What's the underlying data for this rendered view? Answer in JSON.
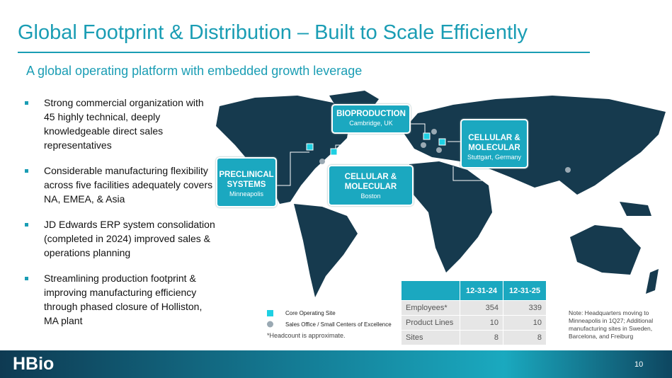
{
  "header": {
    "title": "Global Footprint & Distribution – Built to Scale Efficiently",
    "subtitle": "A global operating platform with embedded growth leverage"
  },
  "bullets": [
    "Strong commercial organization with 45 highly technical, deeply knowledgeable direct sales representatives",
    "Considerable manufacturing flexibility across five facilities adequately covers NA, EMEA, & Asia",
    "JD Edwards ERP system consolidation (completed in 2024) improved sales & operations planning",
    "Streamlining production footprint & improving manufacturing efficiency through phased closure of Holliston, MA plant"
  ],
  "map": {
    "sites": [
      {
        "name": "BIOPRODUCTION",
        "location": "Cambridge, UK"
      },
      {
        "name": "CELLULAR & MOLECULAR",
        "location": "Stuttgart, Germany"
      },
      {
        "name": "PRECLINICAL SYSTEMS",
        "location": "Minneapolis"
      },
      {
        "name": "CELLULAR & MOLECULAR",
        "location": "Boston"
      }
    ]
  },
  "legend": [
    "Core Operating Site",
    "Sales Office / Small Centers of Excellence"
  ],
  "footnote": "*Headcount is approximate.",
  "table": {
    "header": [
      "",
      "12-31-24",
      "12-31-25"
    ],
    "rows": [
      [
        "Employees*",
        "354",
        "339"
      ],
      [
        "Product Lines",
        "10",
        "10"
      ],
      [
        "Sites",
        "8",
        "8"
      ]
    ]
  },
  "note": "Note: Headquarters moving to Minneapolis in 1Q27; Additional manufacturing sites in Sweden, Barcelona, and Freiburg",
  "footer": {
    "logo": "HBio",
    "page": "10"
  }
}
